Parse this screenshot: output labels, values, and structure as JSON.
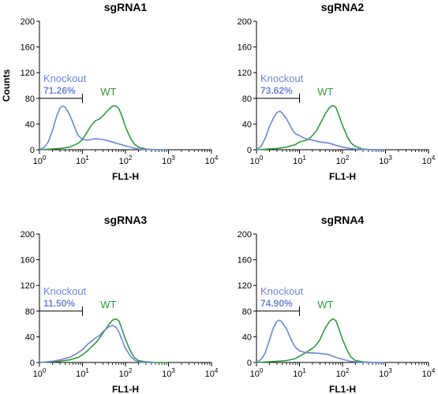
{
  "colors": {
    "knockout": "#6f86d6",
    "wt": "#2e9a3e",
    "axis": "#000000",
    "text": "#000000"
  },
  "chart_data": [
    {
      "type": "line",
      "title": "sgRNA1",
      "xlabel": "FL1-H",
      "ylabel": "Counts",
      "xscale": "log",
      "xlim": [
        1,
        10000
      ],
      "ylim": [
        0,
        200
      ],
      "yticks": [
        0,
        40,
        80,
        120,
        160,
        200
      ],
      "xticks": [
        {
          "base": "10",
          "exp": "0"
        },
        {
          "base": "10",
          "exp": "1"
        },
        {
          "base": "10",
          "exp": "2"
        },
        {
          "base": "10",
          "exp": "3"
        },
        {
          "base": "10",
          "exp": "4"
        }
      ],
      "gate": {
        "label": "Knockout",
        "percent": "71.26%",
        "x_range": [
          1,
          10
        ],
        "y": 80
      },
      "wt_label": "WT",
      "series": [
        {
          "name": "Knockout",
          "x": [
            1,
            1.3,
            1.6,
            2,
            2.5,
            3,
            3.5,
            4,
            5,
            6,
            7,
            8,
            10,
            13,
            16,
            20,
            30,
            50,
            70,
            100,
            150,
            200,
            400,
            1000
          ],
          "values": [
            0,
            4,
            12,
            30,
            52,
            65,
            68,
            66,
            55,
            42,
            30,
            22,
            16,
            15,
            16,
            17,
            16,
            12,
            9,
            6,
            3,
            1,
            0,
            0
          ]
        },
        {
          "name": "WT",
          "x": [
            1,
            3,
            5,
            8,
            10,
            13,
            16,
            20,
            25,
            30,
            40,
            50,
            60,
            70,
            80,
            100,
            130,
            160,
            200,
            300,
            500,
            1000
          ],
          "values": [
            0,
            2,
            4,
            10,
            16,
            28,
            38,
            45,
            48,
            53,
            62,
            68,
            68,
            64,
            55,
            36,
            18,
            9,
            4,
            1,
            0,
            0
          ]
        }
      ]
    },
    {
      "type": "line",
      "title": "sgRNA2",
      "xlabel": "FL1-H",
      "ylabel": "",
      "xscale": "log",
      "xlim": [
        1,
        10000
      ],
      "ylim": [
        0,
        200
      ],
      "yticks": [
        0,
        40,
        80,
        120,
        160,
        200
      ],
      "xticks": [
        {
          "base": "10",
          "exp": "0"
        },
        {
          "base": "10",
          "exp": "1"
        },
        {
          "base": "10",
          "exp": "2"
        },
        {
          "base": "10",
          "exp": "3"
        },
        {
          "base": "10",
          "exp": "4"
        }
      ],
      "gate": {
        "label": "Knockout",
        "percent": "73.62%",
        "x_range": [
          1,
          10
        ],
        "y": 80
      },
      "wt_label": "WT",
      "series": [
        {
          "name": "Knockout",
          "x": [
            1,
            1.3,
            1.6,
            2,
            2.5,
            3,
            3.5,
            4,
            5,
            6,
            7,
            8,
            10,
            13,
            16,
            20,
            30,
            50,
            70,
            100,
            150,
            200,
            400,
            1000
          ],
          "values": [
            0,
            6,
            18,
            36,
            50,
            58,
            60,
            57,
            48,
            38,
            30,
            25,
            22,
            18,
            16,
            15,
            12,
            10,
            7,
            4,
            2,
            1,
            0,
            0
          ]
        },
        {
          "name": "WT",
          "x": [
            1,
            3,
            5,
            8,
            10,
            13,
            16,
            20,
            25,
            30,
            40,
            50,
            60,
            70,
            80,
            100,
            130,
            160,
            200,
            300,
            500,
            1000
          ],
          "values": [
            0,
            2,
            4,
            8,
            12,
            14,
            16,
            22,
            30,
            40,
            56,
            66,
            69,
            66,
            56,
            38,
            20,
            10,
            5,
            1,
            0,
            0
          ]
        }
      ]
    },
    {
      "type": "line",
      "title": "sgRNA3",
      "xlabel": "FL1-H",
      "ylabel": "",
      "xscale": "log",
      "xlim": [
        1,
        10000
      ],
      "ylim": [
        0,
        200
      ],
      "yticks": [
        0,
        40,
        80,
        120,
        160,
        200
      ],
      "xticks": [
        {
          "base": "10",
          "exp": "0"
        },
        {
          "base": "10",
          "exp": "1"
        },
        {
          "base": "10",
          "exp": "2"
        },
        {
          "base": "10",
          "exp": "3"
        },
        {
          "base": "10",
          "exp": "4"
        }
      ],
      "gate": {
        "label": "Knockout",
        "percent": "11.50%",
        "x_range": [
          1,
          10
        ],
        "y": 80
      },
      "wt_label": "WT",
      "series": [
        {
          "name": "Knockout",
          "x": [
            1,
            2,
            3,
            5,
            7,
            10,
            13,
            16,
            20,
            25,
            30,
            40,
            50,
            60,
            70,
            80,
            100,
            130,
            160,
            200,
            300,
            500
          ],
          "values": [
            0,
            2,
            4,
            8,
            13,
            20,
            28,
            33,
            38,
            42,
            48,
            55,
            58,
            55,
            48,
            38,
            22,
            10,
            4,
            1,
            0,
            0
          ]
        },
        {
          "name": "WT",
          "x": [
            1,
            3,
            5,
            8,
            10,
            13,
            16,
            20,
            25,
            30,
            40,
            50,
            60,
            70,
            80,
            100,
            130,
            160,
            200,
            300,
            500,
            1000
          ],
          "values": [
            0,
            2,
            4,
            8,
            12,
            18,
            24,
            30,
            38,
            46,
            58,
            66,
            68,
            65,
            55,
            36,
            18,
            8,
            3,
            1,
            0,
            0
          ]
        }
      ]
    },
    {
      "type": "line",
      "title": "sgRNA4",
      "xlabel": "FL1-H",
      "ylabel": "",
      "xscale": "log",
      "xlim": [
        1,
        10000
      ],
      "ylim": [
        0,
        200
      ],
      "yticks": [
        0,
        40,
        80,
        120,
        160,
        200
      ],
      "xticks": [
        {
          "base": "10",
          "exp": "0"
        },
        {
          "base": "10",
          "exp": "1"
        },
        {
          "base": "10",
          "exp": "2"
        },
        {
          "base": "10",
          "exp": "3"
        },
        {
          "base": "10",
          "exp": "4"
        }
      ],
      "gate": {
        "label": "Knockout",
        "percent": "74.90%",
        "x_range": [
          1,
          10
        ],
        "y": 80
      },
      "wt_label": "WT",
      "series": [
        {
          "name": "Knockout",
          "x": [
            1,
            1.3,
            1.6,
            2,
            2.5,
            3,
            3.5,
            4,
            5,
            6,
            7,
            8,
            10,
            13,
            16,
            20,
            30,
            50,
            70,
            100,
            150,
            200,
            400,
            1000
          ],
          "values": [
            0,
            5,
            15,
            35,
            55,
            64,
            66,
            62,
            52,
            40,
            30,
            24,
            18,
            16,
            15,
            15,
            14,
            12,
            8,
            5,
            2,
            1,
            0,
            0
          ]
        },
        {
          "name": "WT",
          "x": [
            1,
            3,
            5,
            8,
            10,
            13,
            16,
            20,
            25,
            30,
            40,
            50,
            60,
            70,
            80,
            100,
            130,
            160,
            200,
            300,
            500,
            1000
          ],
          "values": [
            0,
            2,
            3,
            6,
            10,
            14,
            18,
            22,
            28,
            36,
            54,
            64,
            68,
            65,
            55,
            36,
            18,
            8,
            3,
            1,
            0,
            0
          ]
        }
      ]
    }
  ]
}
